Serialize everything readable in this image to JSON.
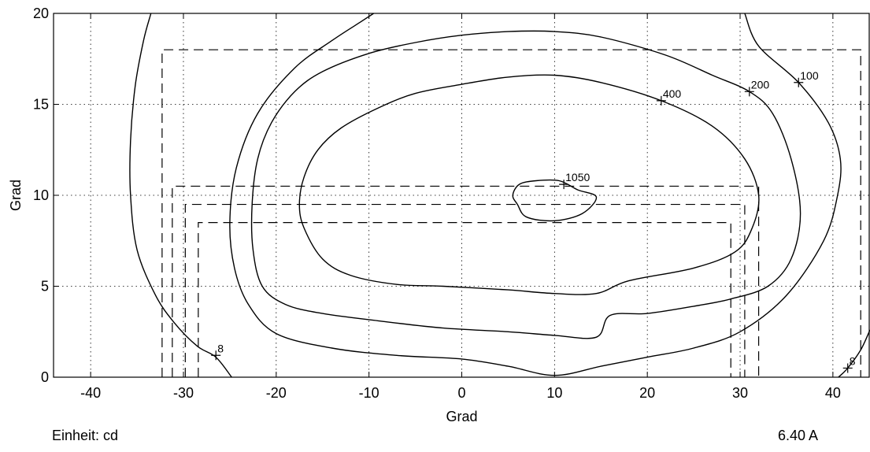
{
  "chart_data": {
    "type": "contour",
    "xlabel": "Grad",
    "ylabel": "Grad",
    "xlim": [
      -44,
      44
    ],
    "ylim": [
      0,
      20
    ],
    "xticks": [
      -40,
      -30,
      -20,
      -10,
      0,
      10,
      20,
      30,
      40
    ],
    "yticks": [
      0,
      5,
      10,
      15,
      20
    ],
    "grid": true,
    "contours": [
      {
        "level": "1050",
        "label_at": [
          11,
          10.6
        ],
        "closed": true,
        "points": [
          [
            6,
            9.5
          ],
          [
            5.5,
            10
          ],
          [
            6.2,
            10.6
          ],
          [
            8,
            10.8
          ],
          [
            10.5,
            10.8
          ],
          [
            12.5,
            10.3
          ],
          [
            14.5,
            9.9
          ],
          [
            13,
            9
          ],
          [
            10,
            8.6
          ],
          [
            7,
            8.8
          ]
        ]
      },
      {
        "level": "400",
        "label_at": [
          21.5,
          15.2
        ],
        "closed": true,
        "points": [
          [
            10,
            16.6
          ],
          [
            15,
            16.2
          ],
          [
            21.5,
            15.2
          ],
          [
            27,
            13.8
          ],
          [
            30.5,
            12
          ],
          [
            32,
            10
          ],
          [
            31.3,
            8.2
          ],
          [
            29.5,
            6.9
          ],
          [
            25,
            6
          ],
          [
            18,
            5.3
          ],
          [
            14.5,
            4.6
          ],
          [
            10,
            4.6
          ],
          [
            5,
            4.8
          ],
          [
            -2,
            5
          ],
          [
            -7,
            5.1
          ],
          [
            -12,
            5.6
          ],
          [
            -15,
            6.5
          ],
          [
            -17,
            8.2
          ],
          [
            -17.5,
            9.5
          ],
          [
            -17,
            11
          ],
          [
            -15.5,
            12.5
          ],
          [
            -13,
            13.7
          ],
          [
            -9,
            14.8
          ],
          [
            -5,
            15.6
          ],
          [
            0,
            16.1
          ],
          [
            5,
            16.5
          ]
        ]
      },
      {
        "level": "200",
        "label_at": [
          31,
          15.7
        ],
        "closed": true,
        "points": [
          [
            10,
            19
          ],
          [
            15,
            18.7
          ],
          [
            22,
            17.7
          ],
          [
            27,
            16.6
          ],
          [
            31,
            15.7
          ],
          [
            33.5,
            14.5
          ],
          [
            35.5,
            12
          ],
          [
            36.5,
            9
          ],
          [
            35.5,
            6.5
          ],
          [
            33,
            5
          ],
          [
            29,
            4.3
          ],
          [
            25,
            3.9
          ],
          [
            20,
            3.5
          ],
          [
            16,
            3.4
          ],
          [
            14.5,
            2.2
          ],
          [
            10,
            2.3
          ],
          [
            5,
            2.5
          ],
          [
            -2,
            2.7
          ],
          [
            -9,
            3.1
          ],
          [
            -15,
            3.5
          ],
          [
            -19,
            4
          ],
          [
            -21.5,
            5
          ],
          [
            -22.5,
            7
          ],
          [
            -22.6,
            9.5
          ],
          [
            -22,
            12
          ],
          [
            -20.5,
            14
          ],
          [
            -18,
            15.7
          ],
          [
            -15,
            16.8
          ],
          [
            -10,
            17.8
          ],
          [
            -5,
            18.4
          ],
          [
            0,
            18.8
          ],
          [
            5,
            19
          ]
        ]
      },
      {
        "level": "100",
        "label_at": [
          36.3,
          16.2
        ],
        "closed": false,
        "points": [
          [
            -9.5,
            20
          ],
          [
            -11,
            19.5
          ],
          [
            -14,
            18.5
          ],
          [
            -18,
            17
          ],
          [
            -22,
            14.5
          ],
          [
            -24.3,
            11.5
          ],
          [
            -25,
            8.5
          ],
          [
            -24.5,
            6
          ],
          [
            -23,
            4
          ],
          [
            -20,
            2.4
          ],
          [
            -14,
            1.6
          ],
          [
            -7,
            1.2
          ],
          [
            0,
            1
          ],
          [
            5,
            0.6
          ],
          [
            10,
            0.1
          ],
          [
            15,
            0.6
          ],
          [
            20,
            1.1
          ],
          [
            25,
            1.6
          ],
          [
            30,
            2.5
          ],
          [
            35,
            4.5
          ],
          [
            39,
            7.5
          ],
          [
            40.5,
            10
          ],
          [
            40.8,
            12
          ],
          [
            39.5,
            14
          ],
          [
            36.3,
            16.2
          ],
          [
            32,
            18.2
          ],
          [
            30.5,
            20
          ]
        ]
      },
      {
        "level": "8",
        "label_at": [
          -26.5,
          1.2
        ],
        "closed": false,
        "points": [
          [
            -33.5,
            20
          ],
          [
            -34.3,
            18.5
          ],
          [
            -35.2,
            16
          ],
          [
            -35.7,
            13
          ],
          [
            -35.7,
            10
          ],
          [
            -35,
            7
          ],
          [
            -33,
            4.5
          ],
          [
            -31,
            3
          ],
          [
            -28.5,
            1.7
          ],
          [
            -26.5,
            1.1
          ],
          [
            -24.8,
            0
          ]
        ]
      },
      {
        "level": "8",
        "label_at": [
          41.6,
          0.5
        ],
        "closed": false,
        "points": [
          [
            40.6,
            0
          ],
          [
            41.6,
            0.5
          ],
          [
            43,
            1.5
          ],
          [
            44,
            2.6
          ]
        ]
      }
    ],
    "dashed_rectangles": [
      {
        "x": [
          -32.3,
          43
        ],
        "y": [
          0,
          18
        ]
      },
      {
        "x": [
          -31.2,
          32
        ],
        "y": [
          0,
          10.5
        ]
      },
      {
        "x": [
          -29.8,
          30.5
        ],
        "y": [
          0,
          9.5
        ]
      },
      {
        "x": [
          -28.4,
          29
        ],
        "y": [
          0,
          8.5
        ]
      }
    ]
  },
  "footer": {
    "unit": "Einheit: cd",
    "current": "6.40 A"
  }
}
